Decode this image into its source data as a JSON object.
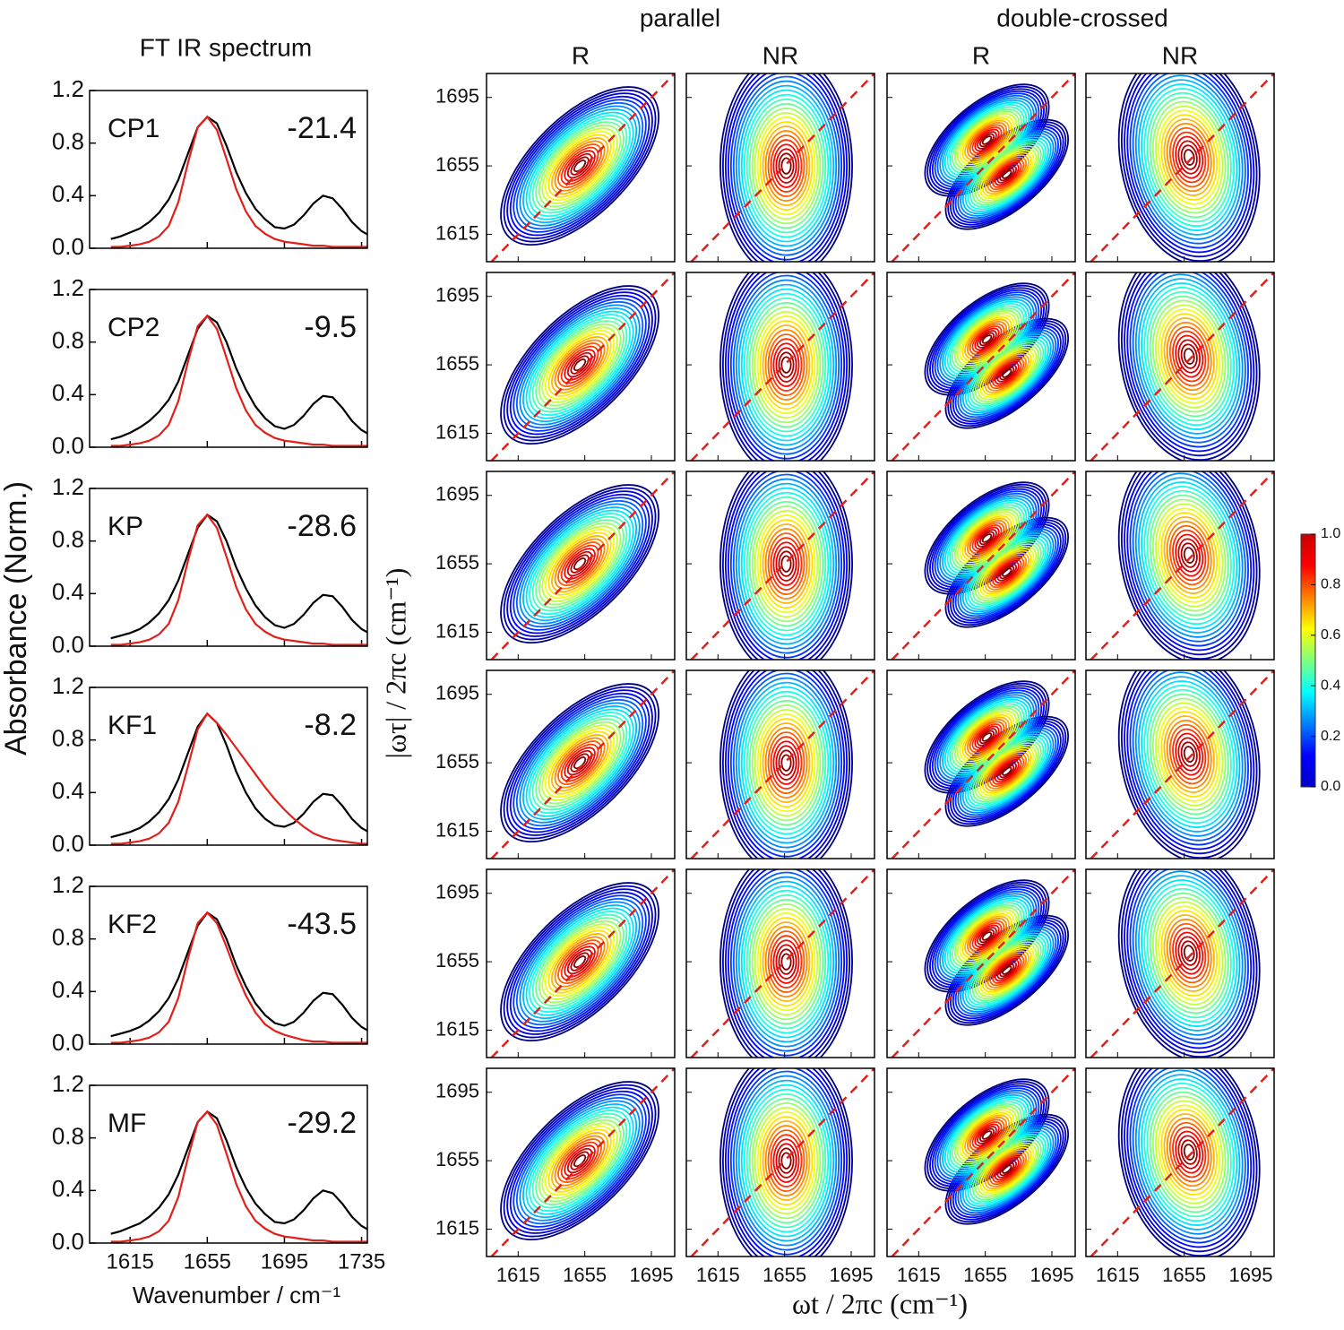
{
  "figure": {
    "title": "FT IR spectrum",
    "ylabel": "Absorbance (Norm.)",
    "xlabel": "Wavenumber / cm⁻¹"
  },
  "chart_data": [
    {
      "type": "line",
      "label": "CP1",
      "annotation": "-21.4",
      "xlim": [
        1594,
        1738
      ],
      "ylim": [
        0,
        1.2
      ],
      "xticks": [
        1615,
        1655,
        1695,
        1735
      ],
      "yticks": [
        {
          "value": 0,
          "label": "0.0"
        },
        {
          "value": 0.4,
          "label": "0.4"
        },
        {
          "value": 0.8,
          "label": "0.8"
        },
        {
          "value": 1.2,
          "label": "1.2"
        }
      ],
      "x": [
        1605,
        1610,
        1615,
        1620,
        1625,
        1630,
        1635,
        1640,
        1645,
        1650,
        1655,
        1660,
        1665,
        1670,
        1675,
        1680,
        1685,
        1690,
        1695,
        1700,
        1705,
        1710,
        1715,
        1720,
        1725,
        1730,
        1735,
        1740
      ],
      "series": [
        {
          "color": "#000000",
          "values": [
            0.07,
            0.09,
            0.12,
            0.15,
            0.2,
            0.27,
            0.37,
            0.52,
            0.72,
            0.92,
            1.0,
            0.95,
            0.78,
            0.58,
            0.42,
            0.3,
            0.22,
            0.16,
            0.15,
            0.18,
            0.25,
            0.34,
            0.4,
            0.38,
            0.3,
            0.2,
            0.13,
            0.09
          ]
        },
        {
          "color": "#e0201b",
          "values": [
            0.01,
            0.01,
            0.02,
            0.03,
            0.05,
            0.09,
            0.17,
            0.35,
            0.65,
            0.92,
            1.0,
            0.9,
            0.68,
            0.45,
            0.28,
            0.17,
            0.11,
            0.07,
            0.05,
            0.04,
            0.03,
            0.02,
            0.02,
            0.01,
            0.01,
            0.01,
            0.01,
            0.01
          ]
        }
      ]
    },
    {
      "type": "line",
      "label": "CP2",
      "annotation": "-9.5",
      "xlim": [
        1594,
        1738
      ],
      "ylim": [
        0,
        1.2
      ],
      "xticks": [
        1615,
        1655,
        1695,
        1735
      ],
      "yticks": [
        {
          "value": 0,
          "label": "0.0"
        },
        {
          "value": 0.4,
          "label": "0.4"
        },
        {
          "value": 0.8,
          "label": "0.8"
        },
        {
          "value": 1.2,
          "label": "1.2"
        }
      ],
      "x": [
        1605,
        1610,
        1615,
        1620,
        1625,
        1630,
        1635,
        1640,
        1645,
        1650,
        1655,
        1660,
        1665,
        1670,
        1675,
        1680,
        1685,
        1690,
        1695,
        1700,
        1705,
        1710,
        1715,
        1720,
        1725,
        1730,
        1735,
        1740
      ],
      "series": [
        {
          "color": "#000000",
          "values": [
            0.06,
            0.08,
            0.11,
            0.15,
            0.2,
            0.27,
            0.36,
            0.5,
            0.7,
            0.9,
            1.0,
            0.95,
            0.8,
            0.6,
            0.44,
            0.31,
            0.22,
            0.16,
            0.14,
            0.17,
            0.24,
            0.33,
            0.39,
            0.38,
            0.3,
            0.2,
            0.13,
            0.09
          ]
        },
        {
          "color": "#e0201b",
          "values": [
            0.01,
            0.01,
            0.02,
            0.03,
            0.05,
            0.09,
            0.17,
            0.35,
            0.65,
            0.92,
            1.0,
            0.9,
            0.68,
            0.45,
            0.28,
            0.17,
            0.11,
            0.07,
            0.05,
            0.04,
            0.03,
            0.02,
            0.02,
            0.01,
            0.01,
            0.01,
            0.01,
            0.01
          ]
        }
      ]
    },
    {
      "type": "line",
      "label": "KP",
      "annotation": "-28.6",
      "xlim": [
        1594,
        1738
      ],
      "ylim": [
        0,
        1.2
      ],
      "xticks": [
        1615,
        1655,
        1695,
        1735
      ],
      "yticks": [
        {
          "value": 0,
          "label": "0.0"
        },
        {
          "value": 0.4,
          "label": "0.4"
        },
        {
          "value": 0.8,
          "label": "0.8"
        },
        {
          "value": 1.2,
          "label": "1.2"
        }
      ],
      "x": [
        1605,
        1610,
        1615,
        1620,
        1625,
        1630,
        1635,
        1640,
        1645,
        1650,
        1655,
        1660,
        1665,
        1670,
        1675,
        1680,
        1685,
        1690,
        1695,
        1700,
        1705,
        1710,
        1715,
        1720,
        1725,
        1730,
        1735,
        1740
      ],
      "series": [
        {
          "color": "#000000",
          "values": [
            0.06,
            0.08,
            0.1,
            0.13,
            0.18,
            0.25,
            0.35,
            0.5,
            0.7,
            0.9,
            1.0,
            0.95,
            0.8,
            0.6,
            0.44,
            0.31,
            0.22,
            0.16,
            0.14,
            0.17,
            0.24,
            0.33,
            0.39,
            0.38,
            0.3,
            0.2,
            0.13,
            0.09
          ]
        },
        {
          "color": "#e0201b",
          "values": [
            0.01,
            0.01,
            0.02,
            0.03,
            0.05,
            0.09,
            0.17,
            0.35,
            0.65,
            0.92,
            1.0,
            0.9,
            0.68,
            0.45,
            0.28,
            0.17,
            0.11,
            0.07,
            0.05,
            0.04,
            0.03,
            0.02,
            0.02,
            0.01,
            0.01,
            0.01,
            0.01,
            0.01
          ]
        }
      ]
    },
    {
      "type": "line",
      "label": "KF1",
      "annotation": "-8.2",
      "xlim": [
        1594,
        1738
      ],
      "ylim": [
        0,
        1.2
      ],
      "xticks": [
        1615,
        1655,
        1695,
        1735
      ],
      "yticks": [
        {
          "value": 0,
          "label": "0.0"
        },
        {
          "value": 0.4,
          "label": "0.4"
        },
        {
          "value": 0.8,
          "label": "0.8"
        },
        {
          "value": 1.2,
          "label": "1.2"
        }
      ],
      "x": [
        1605,
        1610,
        1615,
        1620,
        1625,
        1630,
        1635,
        1640,
        1645,
        1650,
        1655,
        1660,
        1665,
        1670,
        1675,
        1680,
        1685,
        1690,
        1695,
        1700,
        1705,
        1710,
        1715,
        1720,
        1725,
        1730,
        1735,
        1740
      ],
      "series": [
        {
          "color": "#000000",
          "values": [
            0.06,
            0.08,
            0.1,
            0.13,
            0.18,
            0.25,
            0.35,
            0.5,
            0.7,
            0.9,
            1.0,
            0.93,
            0.76,
            0.56,
            0.4,
            0.28,
            0.2,
            0.15,
            0.14,
            0.17,
            0.24,
            0.33,
            0.39,
            0.38,
            0.3,
            0.2,
            0.13,
            0.09
          ]
        },
        {
          "color": "#e0201b",
          "values": [
            0.01,
            0.01,
            0.02,
            0.03,
            0.05,
            0.09,
            0.17,
            0.33,
            0.6,
            0.88,
            1.0,
            0.93,
            0.84,
            0.74,
            0.64,
            0.54,
            0.44,
            0.35,
            0.27,
            0.2,
            0.14,
            0.09,
            0.06,
            0.04,
            0.03,
            0.02,
            0.01,
            0.01
          ]
        }
      ]
    },
    {
      "type": "line",
      "label": "KF2",
      "annotation": "-43.5",
      "xlim": [
        1594,
        1738
      ],
      "ylim": [
        0,
        1.2
      ],
      "xticks": [
        1615,
        1655,
        1695,
        1735
      ],
      "yticks": [
        {
          "value": 0,
          "label": "0.0"
        },
        {
          "value": 0.4,
          "label": "0.4"
        },
        {
          "value": 0.8,
          "label": "0.8"
        },
        {
          "value": 1.2,
          "label": "1.2"
        }
      ],
      "x": [
        1605,
        1610,
        1615,
        1620,
        1625,
        1630,
        1635,
        1640,
        1645,
        1650,
        1655,
        1660,
        1665,
        1670,
        1675,
        1680,
        1685,
        1690,
        1695,
        1700,
        1705,
        1710,
        1715,
        1720,
        1725,
        1730,
        1735,
        1740
      ],
      "series": [
        {
          "color": "#000000",
          "values": [
            0.06,
            0.08,
            0.1,
            0.13,
            0.18,
            0.25,
            0.35,
            0.5,
            0.7,
            0.9,
            1.0,
            0.95,
            0.8,
            0.6,
            0.44,
            0.31,
            0.22,
            0.16,
            0.14,
            0.17,
            0.24,
            0.33,
            0.39,
            0.38,
            0.3,
            0.2,
            0.13,
            0.09
          ]
        },
        {
          "color": "#e0201b",
          "values": [
            0.01,
            0.01,
            0.02,
            0.03,
            0.05,
            0.09,
            0.17,
            0.35,
            0.65,
            0.92,
            1.0,
            0.92,
            0.74,
            0.54,
            0.37,
            0.24,
            0.15,
            0.1,
            0.07,
            0.05,
            0.03,
            0.02,
            0.02,
            0.01,
            0.01,
            0.01,
            0.01,
            0.01
          ]
        }
      ]
    },
    {
      "type": "line",
      "label": "MF",
      "annotation": "-29.2",
      "xlim": [
        1594,
        1738
      ],
      "ylim": [
        0,
        1.2
      ],
      "xticks": [
        1615,
        1655,
        1695,
        1735
      ],
      "yticks": [
        {
          "value": 0,
          "label": "0.0"
        },
        {
          "value": 0.4,
          "label": "0.4"
        },
        {
          "value": 0.8,
          "label": "0.8"
        },
        {
          "value": 1.2,
          "label": "1.2"
        }
      ],
      "x": [
        1605,
        1610,
        1615,
        1620,
        1625,
        1630,
        1635,
        1640,
        1645,
        1650,
        1655,
        1660,
        1665,
        1670,
        1675,
        1680,
        1685,
        1690,
        1695,
        1700,
        1705,
        1710,
        1715,
        1720,
        1725,
        1730,
        1735,
        1740
      ],
      "series": [
        {
          "color": "#000000",
          "values": [
            0.07,
            0.09,
            0.12,
            0.15,
            0.2,
            0.27,
            0.37,
            0.52,
            0.72,
            0.92,
            1.0,
            0.95,
            0.78,
            0.58,
            0.42,
            0.3,
            0.22,
            0.16,
            0.15,
            0.18,
            0.25,
            0.34,
            0.4,
            0.38,
            0.3,
            0.2,
            0.13,
            0.09
          ]
        },
        {
          "color": "#e0201b",
          "values": [
            0.01,
            0.01,
            0.02,
            0.03,
            0.05,
            0.09,
            0.17,
            0.35,
            0.65,
            0.92,
            1.0,
            0.9,
            0.68,
            0.45,
            0.28,
            0.17,
            0.11,
            0.07,
            0.05,
            0.04,
            0.03,
            0.02,
            0.02,
            0.01,
            0.01,
            0.01,
            0.01,
            0.01
          ]
        }
      ]
    },
    {
      "type": "contour",
      "column_groups": [
        "parallel",
        "double-crossed"
      ],
      "columns": [
        "R",
        "NR",
        "R",
        "NR"
      ],
      "xlim": [
        1596,
        1709
      ],
      "ylim": [
        1599,
        1709
      ],
      "xticks": [
        1615,
        1655,
        1695
      ],
      "yticks": [
        1615,
        1655,
        1695
      ],
      "xlabel": "ωt / 2πc (cm⁻¹)",
      "ylabel": "|ωτ| / 2πc (cm⁻¹)",
      "colorbar": {
        "lim": [
          0,
          1
        ],
        "ticks": [
          {
            "value": 0,
            "label": "0.0"
          },
          {
            "value": 0.2,
            "label": "0.2"
          },
          {
            "value": 0.4,
            "label": "0.4"
          },
          {
            "value": 0.6,
            "label": "0.6"
          },
          {
            "value": 0.8,
            "label": "0.8"
          },
          {
            "value": 1,
            "label": "1.0"
          }
        ]
      }
    }
  ]
}
